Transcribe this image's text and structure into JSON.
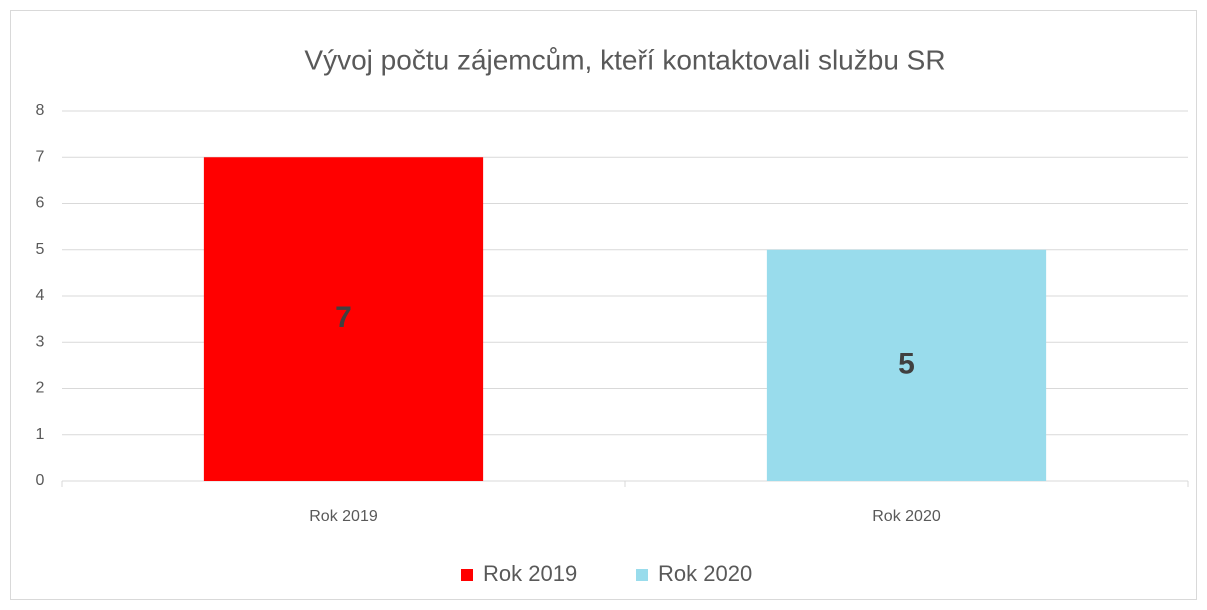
{
  "chart_data": {
    "type": "bar",
    "title": "Vývoj počtu zájemcům, kteří kontaktovali službu SR",
    "categories": [
      "Rok 2019",
      "Rok 2020"
    ],
    "values": [
      7,
      5
    ],
    "colors": [
      "#ff0000",
      "#99dcec"
    ],
    "ylim": [
      0,
      8
    ],
    "yticks": [
      0,
      1,
      2,
      3,
      4,
      5,
      6,
      7,
      8
    ],
    "grid": true,
    "legend": "bottom"
  }
}
